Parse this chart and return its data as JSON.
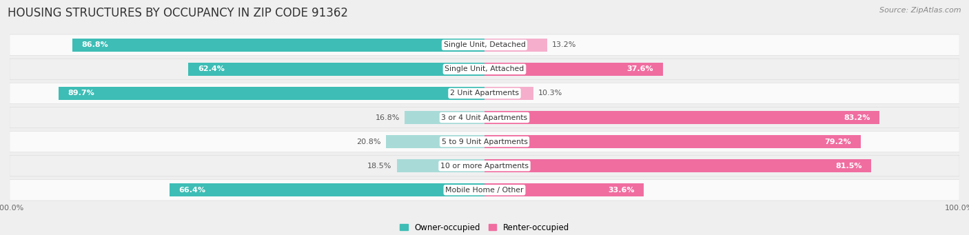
{
  "title": "HOUSING STRUCTURES BY OCCUPANCY IN ZIP CODE 91362",
  "source": "Source: ZipAtlas.com",
  "categories": [
    "Single Unit, Detached",
    "Single Unit, Attached",
    "2 Unit Apartments",
    "3 or 4 Unit Apartments",
    "5 to 9 Unit Apartments",
    "10 or more Apartments",
    "Mobile Home / Other"
  ],
  "owner_pct": [
    86.8,
    62.4,
    89.7,
    16.8,
    20.8,
    18.5,
    66.4
  ],
  "renter_pct": [
    13.2,
    37.6,
    10.3,
    83.2,
    79.2,
    81.5,
    33.6
  ],
  "owner_color_dark": "#3DBDB5",
  "owner_color_light": "#A8DBD8",
  "renter_color_dark": "#F06DA0",
  "renter_color_light": "#F5AECB",
  "bg_color": "#efefef",
  "row_color_odd": "#fafafa",
  "row_color_even": "#f0f0f0",
  "title_fontsize": 12,
  "source_fontsize": 8,
  "label_fontsize": 8,
  "bar_height": 0.55
}
